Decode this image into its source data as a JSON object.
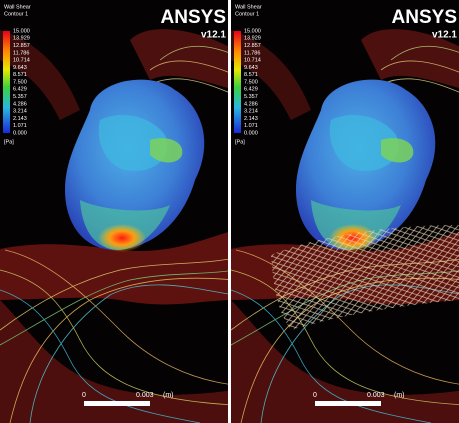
{
  "panels": [
    {
      "logo": "ANSYS",
      "version": "v12.1",
      "legend": {
        "title": "Wall Shear",
        "subtitle": "Contour 1",
        "labels": [
          "15.000",
          "13.929",
          "12.857",
          "11.786",
          "10.714",
          "9.643",
          "8.571",
          "7.500",
          "6.429",
          "5.357",
          "4.286",
          "3.214",
          "2.143",
          "1.071",
          "0.000"
        ],
        "unit": "[Pa]"
      },
      "scale": {
        "start": "0",
        "end": "0.003",
        "unit": "(m)"
      }
    },
    {
      "logo": "ANSYS",
      "version": "v12.1",
      "legend": {
        "title": "Wall Shear",
        "subtitle": "Contour 1",
        "labels": [
          "15.000",
          "13.929",
          "12.857",
          "11.786",
          "10.714",
          "9.643",
          "8.571",
          "7.500",
          "6.429",
          "5.357",
          "4.286",
          "3.214",
          "2.143",
          "1.071",
          "0.000"
        ],
        "unit": "[Pa]"
      },
      "scale": {
        "start": "0",
        "end": "0.003",
        "unit": "(m)"
      }
    }
  ]
}
